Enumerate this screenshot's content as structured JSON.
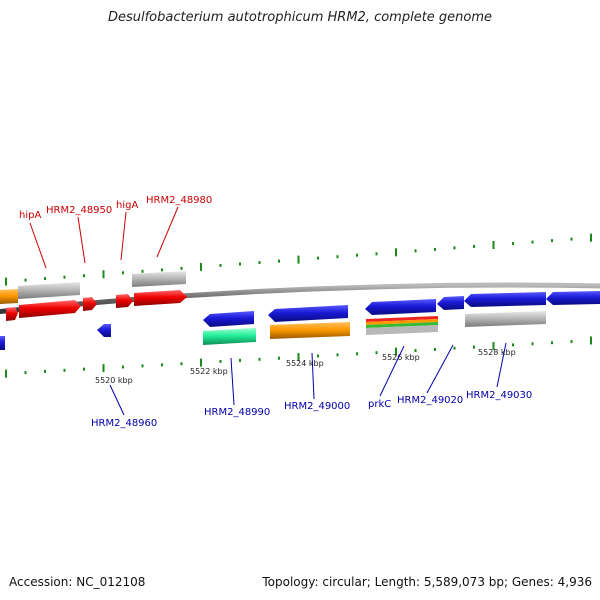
{
  "title": "Desulfobacterium autotrophicum HRM2, complete genome",
  "footer": {
    "accession": "Accession: NC_012108",
    "summary": "Topology: circular; Length: 5,589,073 bp; Genes: 4,936"
  },
  "colors": {
    "backbone": "#777777",
    "forward_gene": "#ee0000",
    "reverse_gene": "#1a1ad6",
    "pseudo_gene": "#b8b8b8",
    "orf_orange": "#ff9900",
    "orf_green": "#22ee99",
    "upper_label": "#cc0000",
    "lower_label": "#0000aa",
    "tick_green": "#1a8a1a"
  },
  "scale_labels": [
    "5520 kbp",
    "5522 kbp",
    "5524 kbp",
    "5526 kbp",
    "5528 kbp"
  ],
  "upper_genes": [
    "hipA",
    "HRM2_48950",
    "higA",
    "HRM2_48980"
  ],
  "lower_genes": [
    "HRM2_48960",
    "HRM2_48990",
    "HRM2_49000",
    "prkC",
    "HRM2_49020",
    "HRM2_49030"
  ]
}
